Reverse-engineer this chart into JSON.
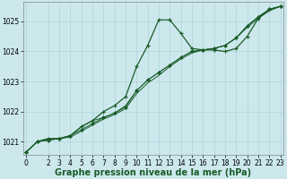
{
  "background_color": "#cce8ed",
  "grid_color": "#aed4d8",
  "line_color": "#1a5c28",
  "marker_color": "#1a5c28",
  "xlabel": "Graphe pression niveau de la mer (hPa)",
  "xlabel_fontsize": 7,
  "xlabel_bold": true,
  "tick_fontsize": 5.5,
  "xlim": [
    -0.3,
    23.3
  ],
  "ylim": [
    1020.55,
    1025.65
  ],
  "yticks": [
    1021,
    1022,
    1023,
    1024,
    1025
  ],
  "xticks": [
    0,
    2,
    3,
    4,
    5,
    6,
    7,
    8,
    9,
    10,
    11,
    12,
    13,
    14,
    15,
    16,
    17,
    18,
    19,
    20,
    21,
    22,
    23
  ],
  "series": [
    {
      "x": [
        0,
        1,
        2,
        3,
        4,
        5,
        6,
        7,
        8,
        9,
        10,
        11,
        12,
        13,
        14,
        15,
        16,
        17,
        18,
        19,
        20,
        21,
        22,
        23
      ],
      "y": [
        1020.65,
        1021.0,
        1021.1,
        1021.1,
        1021.2,
        1021.5,
        1021.7,
        1022.0,
        1022.2,
        1022.5,
        1023.5,
        1024.2,
        1025.05,
        1025.05,
        1024.6,
        1024.1,
        1024.05,
        1024.05,
        1024.0,
        1024.1,
        1024.5,
        1025.1,
        1025.4,
        1025.5
      ],
      "marker": "+",
      "linewidth": 0.9,
      "markersize": 3.5,
      "zorder": 5
    },
    {
      "x": [
        0,
        1,
        2,
        3,
        4,
        5,
        6,
        7,
        8,
        9,
        10,
        11,
        12,
        13,
        14,
        15,
        16,
        17,
        18,
        19,
        20,
        21,
        22,
        23
      ],
      "y": [
        1020.65,
        1021.0,
        1021.1,
        1021.1,
        1021.2,
        1021.5,
        1021.7,
        1021.8,
        1021.95,
        1022.2,
        1022.7,
        1023.05,
        1023.3,
        1023.55,
        1023.8,
        1024.0,
        1024.05,
        1024.1,
        1024.2,
        1024.45,
        1024.85,
        1025.15,
        1025.4,
        1025.5
      ],
      "marker": null,
      "linewidth": 0.7,
      "markersize": 0,
      "zorder": 3
    },
    {
      "x": [
        0,
        1,
        2,
        3,
        4,
        5,
        6,
        7,
        8,
        9,
        10,
        11,
        12,
        13,
        14,
        15,
        16,
        17,
        18,
        19,
        20,
        21,
        22,
        23
      ],
      "y": [
        1020.65,
        1021.0,
        1021.05,
        1021.1,
        1021.15,
        1021.35,
        1021.55,
        1021.75,
        1021.9,
        1022.1,
        1022.6,
        1022.95,
        1023.2,
        1023.5,
        1023.75,
        1023.95,
        1024.05,
        1024.1,
        1024.2,
        1024.45,
        1024.8,
        1025.1,
        1025.35,
        1025.5
      ],
      "marker": null,
      "linewidth": 0.7,
      "markersize": 0,
      "zorder": 3
    },
    {
      "x": [
        0,
        1,
        2,
        3,
        4,
        5,
        6,
        7,
        8,
        9,
        10,
        11,
        12,
        13,
        14,
        15,
        16,
        17,
        18,
        19,
        20,
        21,
        22,
        23
      ],
      "y": [
        1020.65,
        1021.0,
        1021.05,
        1021.1,
        1021.2,
        1021.4,
        1021.6,
        1021.8,
        1021.95,
        1022.15,
        1022.7,
        1023.05,
        1023.3,
        1023.55,
        1023.8,
        1024.0,
        1024.05,
        1024.1,
        1024.2,
        1024.45,
        1024.85,
        1025.15,
        1025.4,
        1025.5
      ],
      "marker": "D",
      "linewidth": 0.7,
      "markersize": 2.0,
      "zorder": 4
    }
  ]
}
